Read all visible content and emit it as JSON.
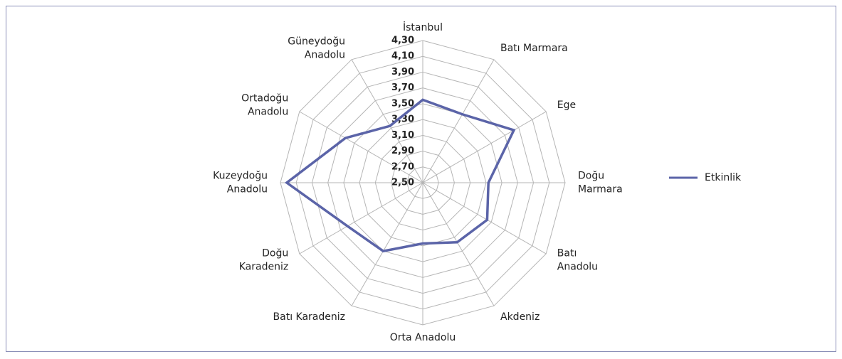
{
  "chart_data": {
    "type": "radar",
    "categories": [
      "İstanbul",
      "Batı Marmara",
      "Ege",
      "Doğu\nMarmara",
      "Batı\nAnadolu",
      "Akdeniz",
      "Orta Anadolu",
      "Batı Karadeniz",
      "Doğu\nKaradeniz",
      "Kuzeydoğu\nAnadolu",
      "Ortadoğu\nAnadolu",
      "Güneydoğu\nAnadolu"
    ],
    "series": [
      {
        "name": "Etkinlik",
        "color": "#5b64a8",
        "values": [
          3.55,
          3.5,
          3.83,
          3.33,
          3.44,
          3.37,
          3.27,
          3.5,
          3.6,
          4.22,
          3.63,
          3.33
        ]
      }
    ],
    "ylim": [
      2.5,
      4.3
    ],
    "yticks": [
      {
        "value": 2.5,
        "label": "2,50"
      },
      {
        "value": 2.7,
        "label": "2,70"
      },
      {
        "value": 2.9,
        "label": "2,90"
      },
      {
        "value": 3.1,
        "label": "3,10"
      },
      {
        "value": 3.3,
        "label": "3,30"
      },
      {
        "value": 3.5,
        "label": "3,50"
      },
      {
        "value": 3.7,
        "label": "3,70"
      },
      {
        "value": 3.9,
        "label": "3,90"
      },
      {
        "value": 4.1,
        "label": "4,10"
      },
      {
        "value": 4.3,
        "label": "4,30"
      }
    ],
    "grid": true,
    "legend": "right"
  }
}
